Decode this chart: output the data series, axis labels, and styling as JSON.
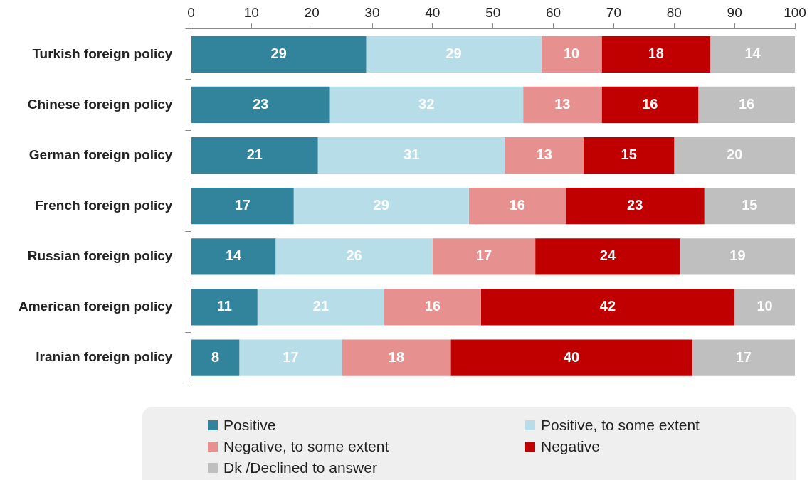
{
  "chart_data": {
    "type": "bar",
    "orientation": "horizontal",
    "stacked": true,
    "categories": [
      "Turkish foreign policy",
      "Chinese foreign policy",
      "German foreign policy",
      "French foreign policy",
      "Russian foreign policy",
      "American foreign policy",
      "Iranian foreign policy"
    ],
    "series": [
      {
        "name": "Positive",
        "color": "#31849b",
        "values": [
          29,
          23,
          21,
          17,
          14,
          11,
          8
        ]
      },
      {
        "name": "Positive, to some extent",
        "color": "#b7dde8",
        "values": [
          29,
          32,
          31,
          29,
          26,
          21,
          17
        ]
      },
      {
        "name": "Negative, to some extent",
        "color": "#e6918f",
        "values": [
          10,
          13,
          13,
          16,
          17,
          16,
          18
        ]
      },
      {
        "name": "Negative",
        "color": "#c00000",
        "values": [
          18,
          16,
          15,
          23,
          24,
          42,
          40
        ]
      },
      {
        "name": "Dk /Declined to answer",
        "color": "#bfbfbf",
        "values": [
          14,
          16,
          20,
          15,
          19,
          10,
          17
        ]
      }
    ],
    "xlim": [
      0,
      100
    ],
    "xticks": [
      0,
      10,
      20,
      30,
      40,
      50,
      60,
      70,
      80,
      90,
      100
    ],
    "grid": false,
    "legend": "bottom",
    "data_labels": true
  }
}
